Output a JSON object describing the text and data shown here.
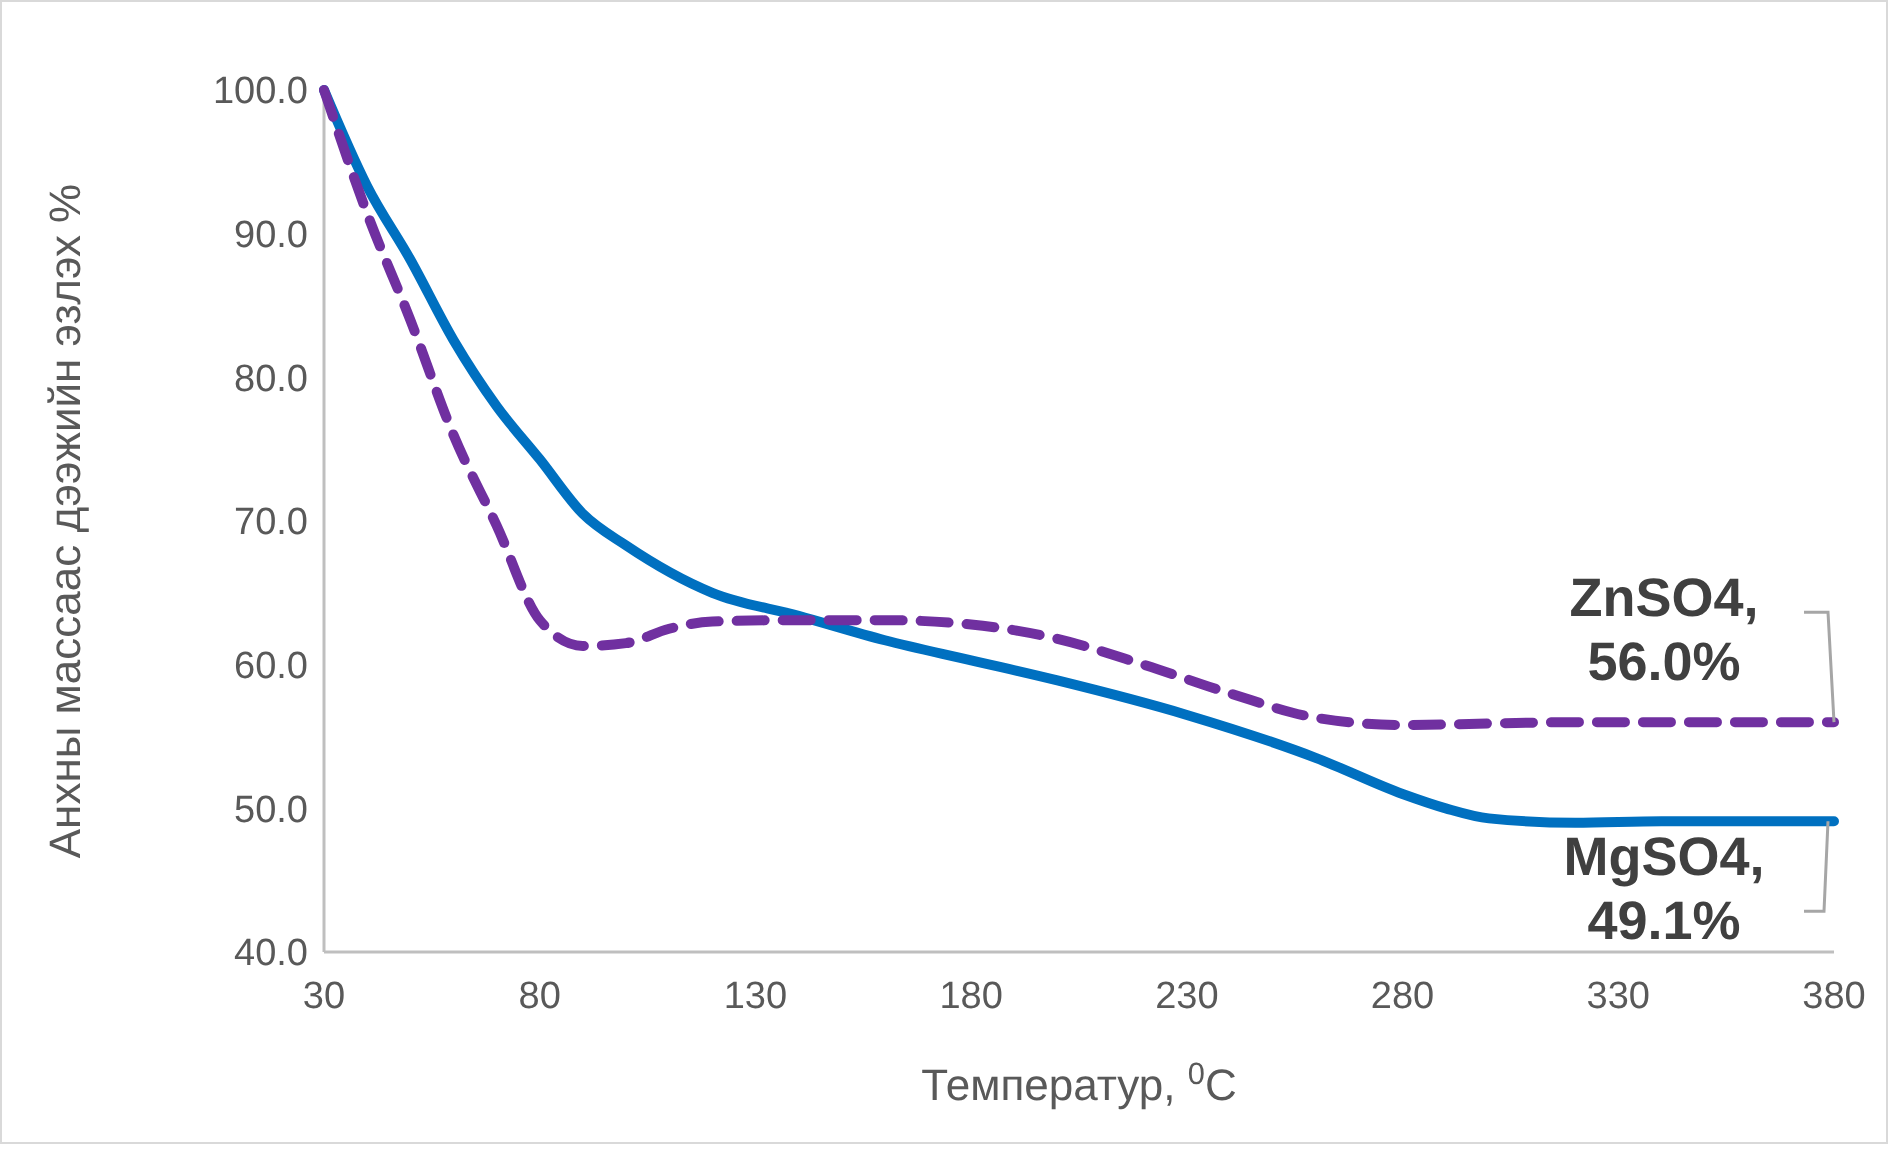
{
  "chart_data": {
    "type": "line",
    "xlabel": "Температур, $^{0}$C",
    "ylabel": "Анхны массаас дээжийн эзлэх %",
    "xlim": [
      30,
      380
    ],
    "xticks": [
      30,
      80,
      130,
      180,
      230,
      280,
      330,
      380
    ],
    "ylim": [
      40,
      100
    ],
    "yticks": [
      {
        "value": 40,
        "label": "40.0"
      },
      {
        "value": 50,
        "label": "50.0"
      },
      {
        "value": 60,
        "label": "60.0"
      },
      {
        "value": 70,
        "label": "70.0"
      },
      {
        "value": 80,
        "label": "80.0"
      },
      {
        "value": 90,
        "label": "90.0"
      },
      {
        "value": 100,
        "label": "100.0"
      }
    ],
    "grid": false,
    "marker": "none",
    "series": [
      {
        "color": "#0070c0",
        "line_style": "solid",
        "x": [
          30,
          40,
          50,
          60,
          70,
          80,
          90,
          100,
          120,
          140,
          160,
          180,
          200,
          230,
          260,
          280,
          290,
          300,
          320,
          340,
          380
        ],
        "values": [
          100,
          93.3,
          88.2,
          82.6,
          78,
          74.3,
          70.5,
          68.3,
          65,
          63.4,
          61.7,
          60.3,
          58.9,
          56.5,
          53.5,
          51,
          50,
          49.3,
          49,
          49.1,
          49.1
        ]
      },
      {
        "color": "#7030a0",
        "line_style": "dashed",
        "x": [
          30,
          40,
          50,
          60,
          70,
          80,
          90,
          100,
          110,
          120,
          140,
          160,
          180,
          200,
          220,
          240,
          260,
          280,
          300,
          320,
          380
        ],
        "values": [
          100,
          91.4,
          84,
          76,
          69.7,
          63.1,
          61.3,
          61.5,
          62.5,
          63,
          63.1,
          63.1,
          62.8,
          61.8,
          60,
          58,
          56.3,
          55.8,
          55.9,
          56,
          56
        ]
      }
    ],
    "annotations": [
      {
        "text": "ZnSO4,\n56.0%",
        "x": 380,
        "y": 56
      },
      {
        "text": "MgSO4,\n49.1%",
        "x": 380,
        "y": 49.1
      }
    ]
  }
}
